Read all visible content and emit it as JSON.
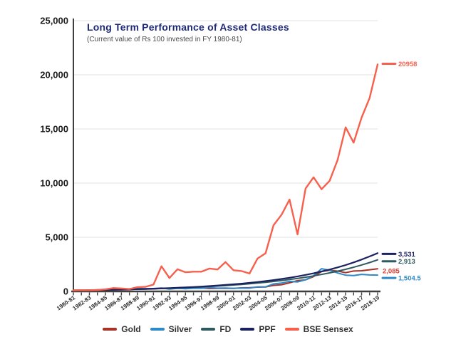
{
  "colors": {
    "axis": "#3f3f3f",
    "grid": "#e2e2e2",
    "title": "#1e2a78",
    "subtitle": "#4a4a4a",
    "tick_text": "#1c1c1c"
  },
  "chart_data": {
    "type": "line",
    "title": "Long Term Performance of Asset Classes",
    "subtitle": "(Current value of Rs 100 invested in FY 1980-81)",
    "ylim": [
      0,
      25000
    ],
    "y_ticks": [
      0,
      5000,
      10000,
      15000,
      20000,
      25000
    ],
    "y_tick_labels": [
      "0",
      "5,000",
      "10,000",
      "15,000",
      "20,000",
      "25,000"
    ],
    "x_label_every": 2,
    "grid": "horizontal",
    "legend_position": "bottom",
    "x": [
      "1980-81",
      "1981-82",
      "1982-83",
      "1983-84",
      "1984-85",
      "1985-86",
      "1986-87",
      "1987-88",
      "1988-89",
      "1989-90",
      "1990-91",
      "1991-92",
      "1992-93",
      "1993-94",
      "1994-95",
      "1995-96",
      "1996-97",
      "1997-98",
      "1998-99",
      "1999-00",
      "2000-01",
      "2001-02",
      "2002-03",
      "2003-04",
      "2004-05",
      "2005-06",
      "2006-07",
      "2007-08",
      "2008-09",
      "2009-10",
      "2010-11",
      "2011-12",
      "2012-13",
      "2013-14",
      "2014-15",
      "2015-16",
      "2016-17",
      "2017-18",
      "2018-19"
    ],
    "series": [
      {
        "name": "Gold",
        "color": "#a93226",
        "width": 2,
        "end_label": "2,085",
        "end_label_color": "#e03a2c",
        "end_label_swatch": false,
        "end_label_dy": 2.5,
        "values": [
          100,
          108,
          113,
          122,
          131,
          140,
          153,
          203,
          209,
          212,
          228,
          285,
          272,
          302,
          308,
          339,
          311,
          266,
          279,
          288,
          276,
          326,
          346,
          395,
          407,
          559,
          618,
          798,
          994,
          1074,
          1367,
          1845,
          1948,
          1873,
          1727,
          1882,
          1905,
          1999,
          2085
        ]
      },
      {
        "name": "Silver",
        "color": "#2e89c8",
        "width": 2,
        "end_label": "1,504.5",
        "end_label_color": "#2e89c8",
        "end_label_swatch": true,
        "end_label_dy": 4,
        "values": [
          100,
          108,
          123,
          141,
          157,
          159,
          190,
          240,
          267,
          256,
          263,
          318,
          217,
          283,
          253,
          291,
          291,
          339,
          301,
          313,
          286,
          312,
          305,
          423,
          423,
          689,
          773,
          935,
          877,
          1079,
          1450,
          2100,
          1950,
          1705,
          1497,
          1464,
          1570,
          1520,
          1504.5
        ]
      },
      {
        "name": "FD",
        "color": "#2e5a5e",
        "width": 2,
        "end_label": "2,913",
        "end_label_color": "#2e5a5e",
        "end_label_swatch": true,
        "end_label_dy": 2,
        "values": [
          100,
          109,
          119,
          131,
          143,
          156,
          170,
          186,
          203,
          222,
          243,
          265,
          290,
          317,
          346,
          378,
          413,
          452,
          494,
          539,
          589,
          644,
          704,
          769,
          840,
          918,
          1004,
          1097,
          1199,
          1310,
          1432,
          1564,
          1710,
          1868,
          2042,
          2231,
          2438,
          2665,
          2913
        ]
      },
      {
        "name": "PPF",
        "color": "#1c2260",
        "width": 2.2,
        "end_label": "3,531",
        "end_label_color": "#1c2260",
        "end_label_swatch": true,
        "end_label_dy": 1,
        "values": [
          100,
          110,
          121,
          133,
          146,
          160,
          176,
          193,
          212,
          233,
          256,
          281,
          309,
          339,
          373,
          409,
          450,
          494,
          543,
          596,
          655,
          719,
          790,
          868,
          953,
          1047,
          1150,
          1263,
          1388,
          1524,
          1674,
          1839,
          2020,
          2219,
          2437,
          2677,
          2941,
          3230,
          3531
        ]
      },
      {
        "name": "BSE Sensex",
        "color": "#f7604d",
        "width": 2.4,
        "end_label": "20958",
        "end_label_color": "#f7604d",
        "end_label_swatch": true,
        "end_label_dy": -1,
        "values": [
          100,
          118,
          115,
          133,
          192,
          311,
          276,
          216,
          387,
          423,
          633,
          2322,
          1236,
          2048,
          1767,
          1825,
          1822,
          2110,
          2027,
          2711,
          1953,
          1880,
          1652,
          3030,
          3519,
          6113,
          7085,
          8479,
          5262,
          9500,
          10539,
          9433,
          10209,
          12133,
          15152,
          13735,
          16054,
          17869,
          20958
        ]
      }
    ]
  }
}
